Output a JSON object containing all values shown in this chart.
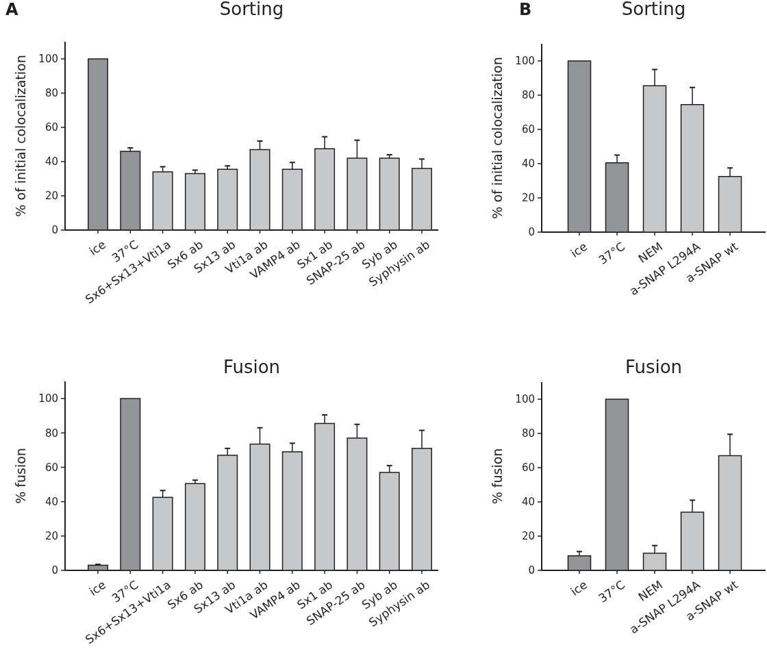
{
  "chart_data": [
    {
      "type": "bar",
      "title": "Sorting",
      "ylabel": "% of initial colocalization",
      "annotations": [
        "A"
      ],
      "categories": [
        "ice",
        "37°C",
        "Sx6+Sx13+Vti1a",
        "Sx6 ab",
        "Sx13 ab",
        "Vti1a  ab",
        "VAMP4 ab",
        "Sx1 ab",
        "SNAP-25 ab",
        "Syb ab",
        "Syphysin ab"
      ],
      "values": [
        100,
        46,
        34,
        33,
        35.5,
        47,
        35.5,
        47.5,
        42,
        42,
        36
      ],
      "colors": [
        "#939598",
        "#939598",
        "#c7c8ca",
        "#c7c8ca",
        "#c7c8ca",
        "#c7c8ca",
        "#c7c8ca",
        "#c7c8ca",
        "#c7c8ca",
        "#c7c8ca",
        "#c7c8ca"
      ],
      "errors": [
        null,
        [
          46,
          48
        ],
        [
          34,
          37
        ],
        [
          33,
          35
        ],
        [
          35.5,
          37.5
        ],
        [
          47,
          52
        ],
        [
          35.5,
          39.5
        ],
        [
          47.5,
          54.5
        ],
        [
          42,
          52.5
        ],
        [
          42,
          44
        ],
        [
          36,
          41.5
        ]
      ],
      "ylim": [
        0,
        110
      ],
      "yticks": [
        0,
        20,
        40,
        60,
        80,
        100
      ]
    },
    {
      "type": "bar",
      "title": "Sorting",
      "ylabel": "% of initial colocalization",
      "annotations": [
        "B"
      ],
      "categories": [
        "ice",
        "37°C",
        "NEM",
        "a-SNAP L294A",
        "a-SNAP wt"
      ],
      "values": [
        100,
        40.5,
        85.5,
        74.5,
        32.5
      ],
      "colors": [
        "#939598",
        "#939598",
        "#c7c8ca",
        "#c7c8ca",
        "#c7c8ca"
      ],
      "errors": [
        null,
        [
          40.5,
          45
        ],
        [
          85.5,
          95
        ],
        [
          74.5,
          84.5
        ],
        [
          32.5,
          37.5
        ]
      ],
      "ylim": [
        0,
        110
      ],
      "yticks": [
        0,
        20,
        40,
        60,
        80,
        100
      ]
    },
    {
      "type": "bar",
      "title": "Fusion",
      "ylabel": "% fusion",
      "categories": [
        "ice",
        "37°C",
        "Sx6+Sx13+Vti1a",
        "Sx6 ab",
        "Sx13 ab",
        "Vti1a  ab",
        "VAMP4 ab",
        "Sx1 ab",
        "SNAP-25 ab",
        "Syb ab",
        "Syphysin ab"
      ],
      "values": [
        3,
        100,
        42.5,
        50.5,
        67,
        73.5,
        69,
        85.5,
        77,
        57,
        71
      ],
      "colors": [
        "#939598",
        "#939598",
        "#c7c8ca",
        "#c7c8ca",
        "#c7c8ca",
        "#c7c8ca",
        "#c7c8ca",
        "#c7c8ca",
        "#c7c8ca",
        "#c7c8ca",
        "#c7c8ca"
      ],
      "errors": [
        [
          3,
          3.5
        ],
        null,
        [
          42.5,
          46.5
        ],
        [
          50.5,
          52.5
        ],
        [
          67,
          71
        ],
        [
          73.5,
          83
        ],
        [
          69,
          74
        ],
        [
          85.5,
          90.5
        ],
        [
          77,
          85
        ],
        [
          57,
          61
        ],
        [
          71,
          81.5
        ]
      ],
      "ylim": [
        0,
        110
      ],
      "yticks": [
        0,
        20,
        40,
        60,
        80,
        100
      ]
    },
    {
      "type": "bar",
      "title": "Fusion",
      "ylabel": "% fusion",
      "categories": [
        "ice",
        "37°C",
        "NEM",
        "a-SNAP L294A",
        "a-SNAP wt"
      ],
      "values": [
        8.5,
        100,
        10,
        34,
        67
      ],
      "colors": [
        "#939598",
        "#939598",
        "#c7c8ca",
        "#c7c8ca",
        "#c7c8ca"
      ],
      "errors": [
        [
          8.5,
          11
        ],
        null,
        [
          10,
          14.5
        ],
        [
          34,
          41
        ],
        [
          67,
          79.5
        ]
      ],
      "ylim": [
        0,
        110
      ],
      "yticks": [
        0,
        20,
        40,
        60,
        80,
        100
      ]
    }
  ]
}
